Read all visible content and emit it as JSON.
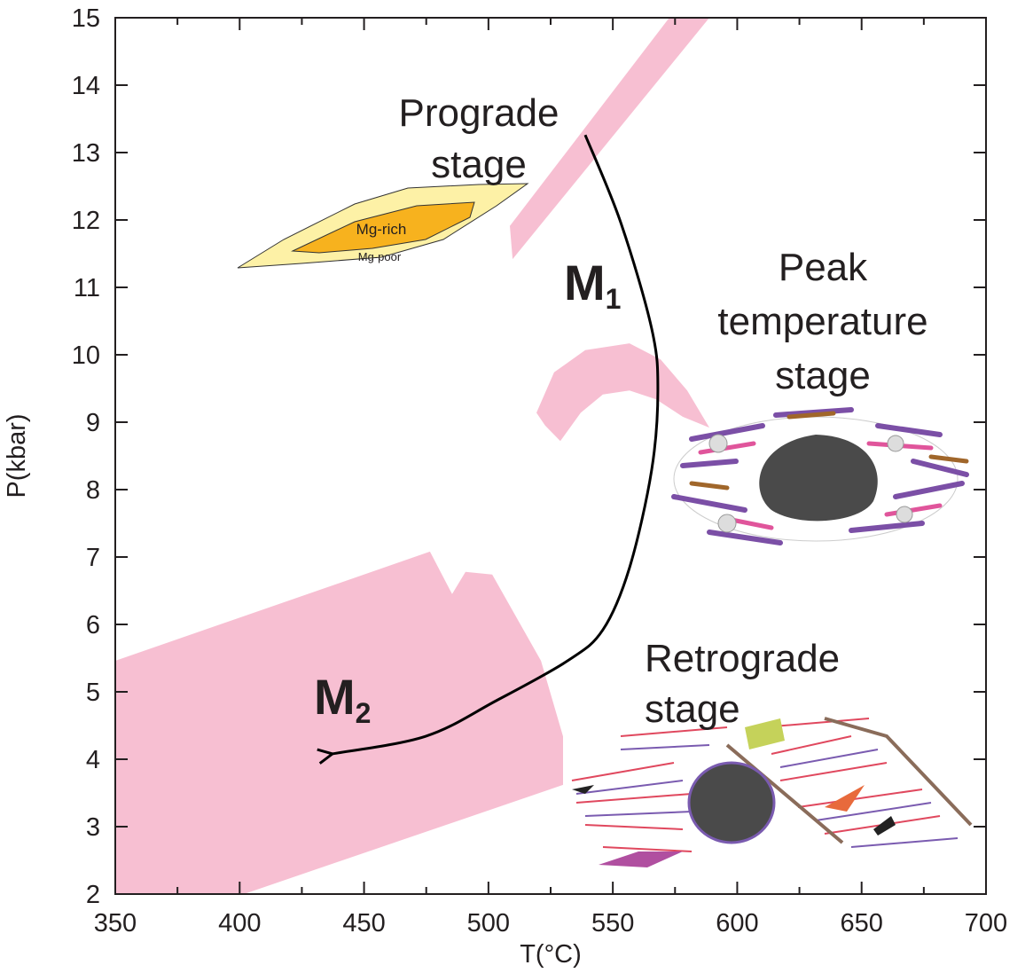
{
  "chart_data": {
    "type": "line",
    "xlabel": "T(°C)",
    "ylabel": "P(kbar)",
    "xlim": [
      350,
      700
    ],
    "ylim": [
      2,
      15
    ],
    "xticks": [
      350,
      400,
      450,
      500,
      550,
      600,
      650,
      700
    ],
    "yticks": [
      2,
      3,
      4,
      5,
      6,
      7,
      8,
      9,
      10,
      11,
      12,
      13,
      14,
      15
    ],
    "areas": [
      {
        "color": "#f7bfd2",
        "x": [
          508.6,
          572.7,
          588.8,
          509.7
        ],
        "y": [
          11.91,
          15,
          15,
          11.42
        ]
      },
      {
        "color": "#f7bfd2",
        "x": [
          519.3,
          526.4,
          538.9,
          556.7,
          569.2,
          579.9,
          588.8,
          578.1,
          567.4,
          556.7,
          546.0,
          537.1,
          528.9,
          522.8
        ],
        "y": [
          9.14,
          9.74,
          10.07,
          10.17,
          9.93,
          9.47,
          8.92,
          9.08,
          9.34,
          9.47,
          9.41,
          9.14,
          8.72,
          8.95
        ]
      },
      {
        "color": "#f7bfd2",
        "x": [
          350,
          476.5,
          485.4,
          490.8,
          501.5,
          521.1,
          530,
          530,
          401.7,
          350
        ],
        "y": [
          5.46,
          7.08,
          6.45,
          6.78,
          6.74,
          5.46,
          4.34,
          3.62,
          2,
          2
        ]
      }
    ],
    "series": [
      {
        "color": "#000000",
        "x": [
          538.9,
          553.1,
          565.6,
          568.1,
          565.6,
          556.7,
          546.0,
          531.8,
          503.2,
          474.7,
          437.3
        ],
        "y": [
          13.26,
          11.97,
          10.39,
          9.47,
          8.29,
          6.84,
          5.92,
          5.46,
          4.87,
          4.34,
          4.08
        ]
      }
    ],
    "annotations": [
      {
        "lines": [
          "Prograde",
          "stage"
        ]
      },
      {
        "lines": [
          "Peak",
          "temperature",
          "stage"
        ]
      },
      {
        "lines": [
          "Retrograde",
          "stage"
        ]
      },
      {
        "text": "M",
        "subscript": "1"
      },
      {
        "text": "M",
        "subscript": "2"
      },
      {
        "lines": [
          "Mg-rich"
        ]
      },
      {
        "lines": [
          "Mg-poor"
        ]
      }
    ]
  }
}
